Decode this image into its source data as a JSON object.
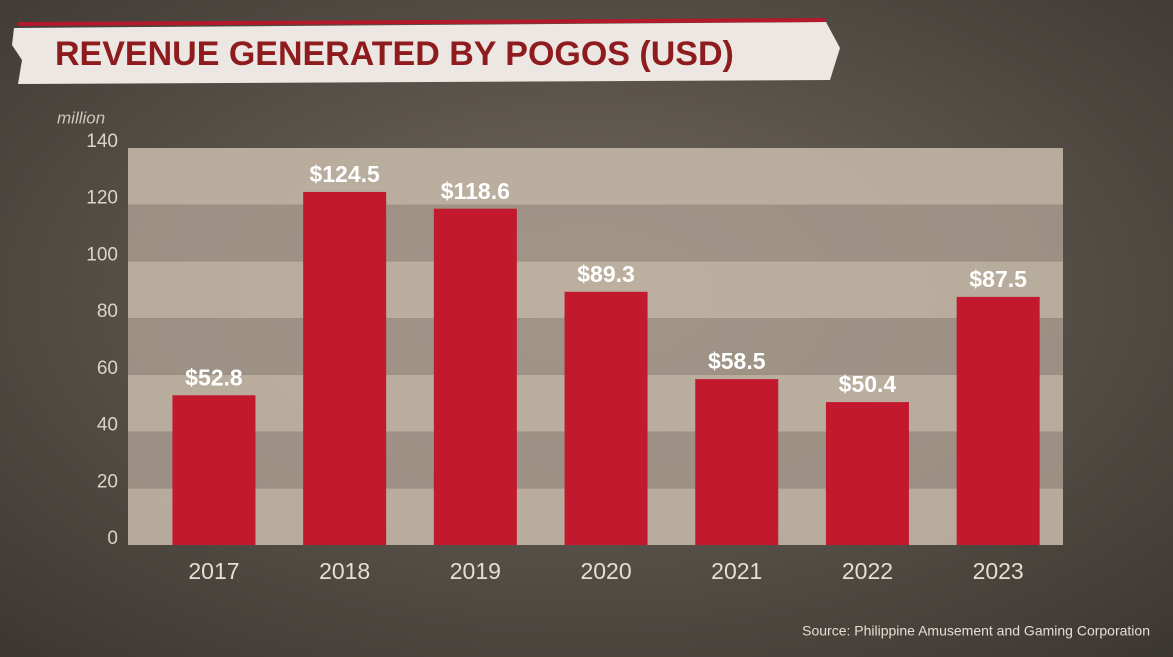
{
  "chart_data": {
    "type": "bar",
    "title": "REVENUE GENERATED BY POGOS (USD)",
    "y_unit": "million",
    "categories": [
      "2017",
      "2018",
      "2019",
      "2020",
      "2021",
      "2022",
      "2023"
    ],
    "values": [
      52.8,
      124.5,
      118.6,
      89.3,
      58.5,
      50.4,
      87.5
    ],
    "value_labels": [
      "$52.8",
      "$124.5",
      "$118.6",
      "$89.3",
      "$58.5",
      "$50.4",
      "$87.5"
    ],
    "color": "#c3192f",
    "ylim": [
      0,
      140
    ],
    "yticks": [
      0,
      20,
      40,
      60,
      80,
      100,
      120,
      140
    ],
    "grid": true,
    "source": "Source: Philippine Amusement and Gaming Corporation"
  }
}
